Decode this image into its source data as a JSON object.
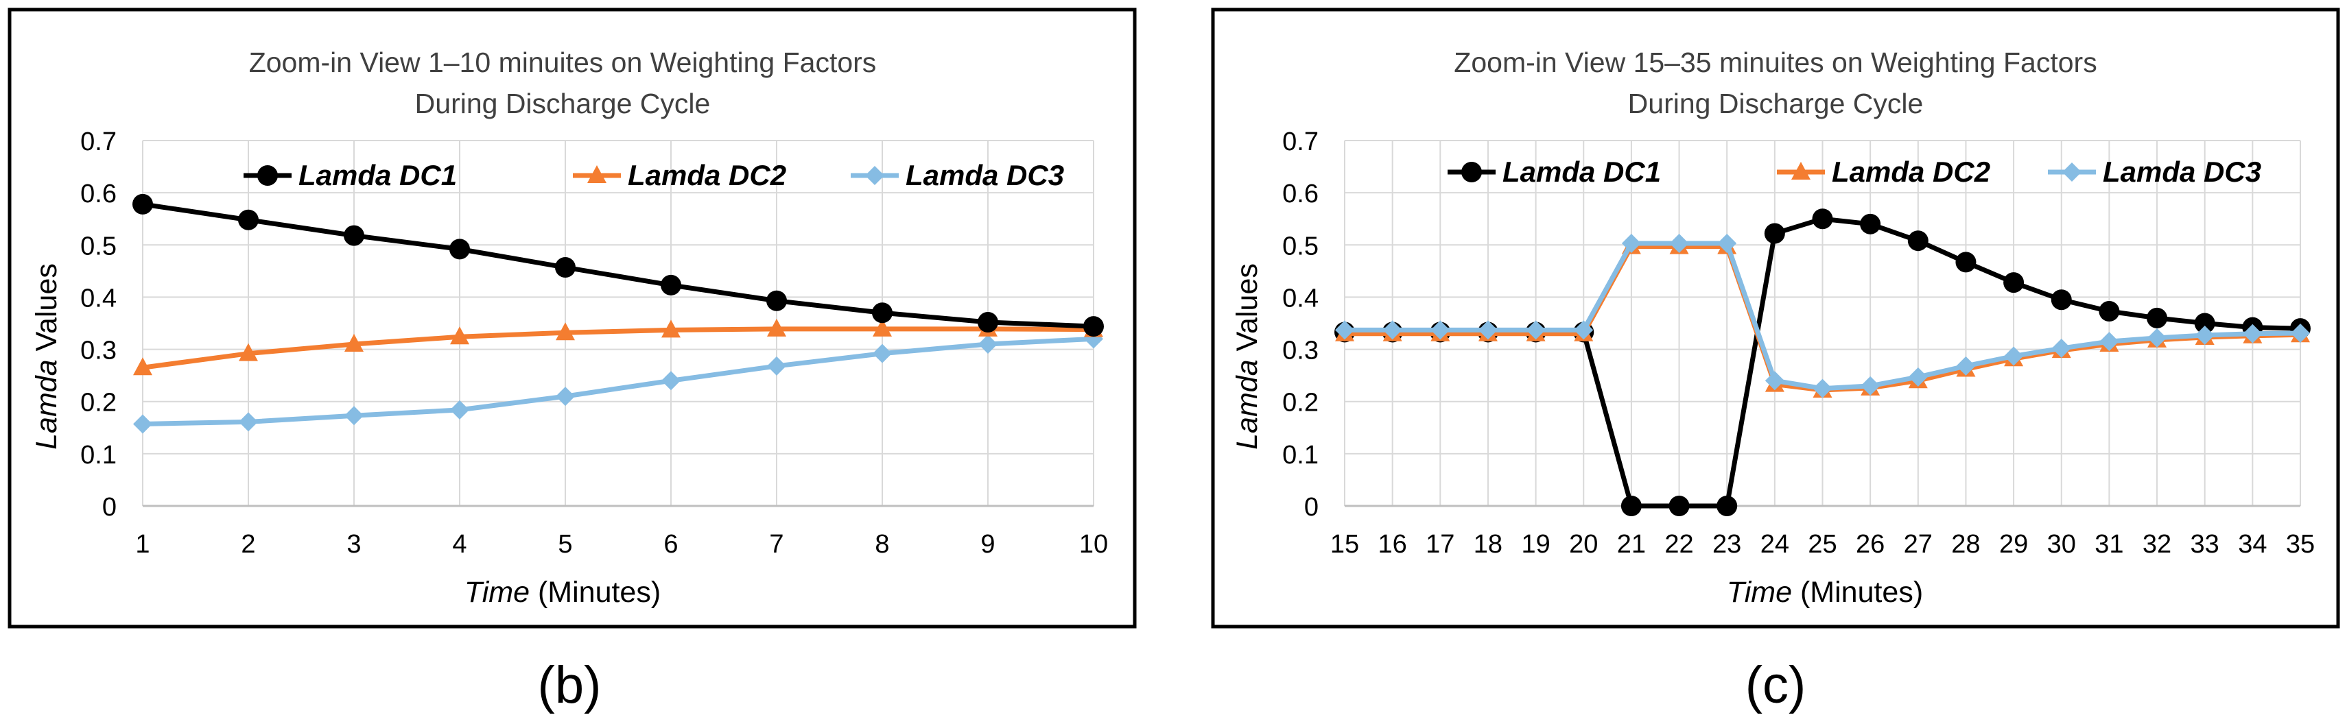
{
  "colors": {
    "dc1": "#000000",
    "dc2": "#F47D30",
    "dc3": "#86BCE3",
    "grid": "#D9D9D9",
    "frame": "#000000"
  },
  "chart_data": [
    {
      "type": "line",
      "panel_label": "(b)",
      "title_line1": "Zoom-in View 1–10 minuites on Weighting Factors",
      "title_line2": "During Discharge Cycle",
      "xlabel_italic": "Time",
      "xlabel_rest": " (Minutes)",
      "ylabel_italic": "Lamda",
      "ylabel_rest": " Values",
      "x": [
        1,
        2,
        3,
        4,
        5,
        6,
        7,
        8,
        9,
        10
      ],
      "x_ticks": [
        "1",
        "2",
        "3",
        "4",
        "5",
        "6",
        "7",
        "8",
        "9",
        "10"
      ],
      "ylim": [
        0,
        0.7
      ],
      "y_ticks": [
        "0",
        "0.1",
        "0.2",
        "0.3",
        "0.4",
        "0.5",
        "0.6",
        "0.7"
      ],
      "grid": true,
      "legend_position": "top",
      "series": [
        {
          "name": "Lamda DC1",
          "marker": "circle",
          "values": [
            0.578,
            0.548,
            0.518,
            0.492,
            0.457,
            0.423,
            0.393,
            0.37,
            0.352,
            0.344
          ]
        },
        {
          "name": "Lamda DC2",
          "marker": "triangle",
          "values": [
            0.265,
            0.292,
            0.31,
            0.324,
            0.332,
            0.337,
            0.339,
            0.339,
            0.339,
            0.338
          ]
        },
        {
          "name": "Lamda DC3",
          "marker": "diamond",
          "values": [
            0.157,
            0.161,
            0.173,
            0.184,
            0.21,
            0.24,
            0.268,
            0.292,
            0.31,
            0.32
          ]
        }
      ]
    },
    {
      "type": "line",
      "panel_label": "(c)",
      "title_line1": "Zoom-in View 15–35 minuites on Weighting Factors",
      "title_line2": "During Discharge Cycle",
      "xlabel_italic": "Time",
      "xlabel_rest": " (Minutes)",
      "ylabel_italic": "Lamda",
      "ylabel_rest": " Values",
      "x": [
        15,
        16,
        17,
        18,
        19,
        20,
        21,
        22,
        23,
        24,
        25,
        26,
        27,
        28,
        29,
        30,
        31,
        32,
        33,
        34,
        35
      ],
      "x_ticks": [
        "15",
        "16",
        "17",
        "18",
        "19",
        "20",
        "21",
        "22",
        "23",
        "24",
        "25",
        "26",
        "27",
        "28",
        "29",
        "30",
        "31",
        "32",
        "33",
        "34",
        "35"
      ],
      "ylim": [
        0,
        0.7
      ],
      "y_ticks": [
        "0",
        "0.1",
        "0.2",
        "0.3",
        "0.4",
        "0.5",
        "0.6",
        "0.7"
      ],
      "grid": true,
      "legend_position": "top",
      "series": [
        {
          "name": "Lamda DC1",
          "marker": "circle",
          "values": [
            0.333,
            0.333,
            0.333,
            0.333,
            0.333,
            0.333,
            0,
            0,
            0,
            0.522,
            0.55,
            0.54,
            0.508,
            0.467,
            0.428,
            0.395,
            0.373,
            0.36,
            0.35,
            0.342,
            0.34
          ]
        },
        {
          "name": "Lamda DC2",
          "marker": "triangle",
          "values": [
            0.33,
            0.33,
            0.33,
            0.33,
            0.33,
            0.33,
            0.497,
            0.497,
            0.497,
            0.233,
            0.222,
            0.226,
            0.24,
            0.262,
            0.282,
            0.298,
            0.31,
            0.318,
            0.323,
            0.326,
            0.328
          ]
        },
        {
          "name": "Lamda DC3",
          "marker": "diamond",
          "values": [
            0.337,
            0.337,
            0.337,
            0.337,
            0.337,
            0.337,
            0.503,
            0.503,
            0.503,
            0.24,
            0.225,
            0.23,
            0.247,
            0.268,
            0.287,
            0.302,
            0.315,
            0.322,
            0.327,
            0.33,
            0.331
          ]
        }
      ]
    }
  ]
}
